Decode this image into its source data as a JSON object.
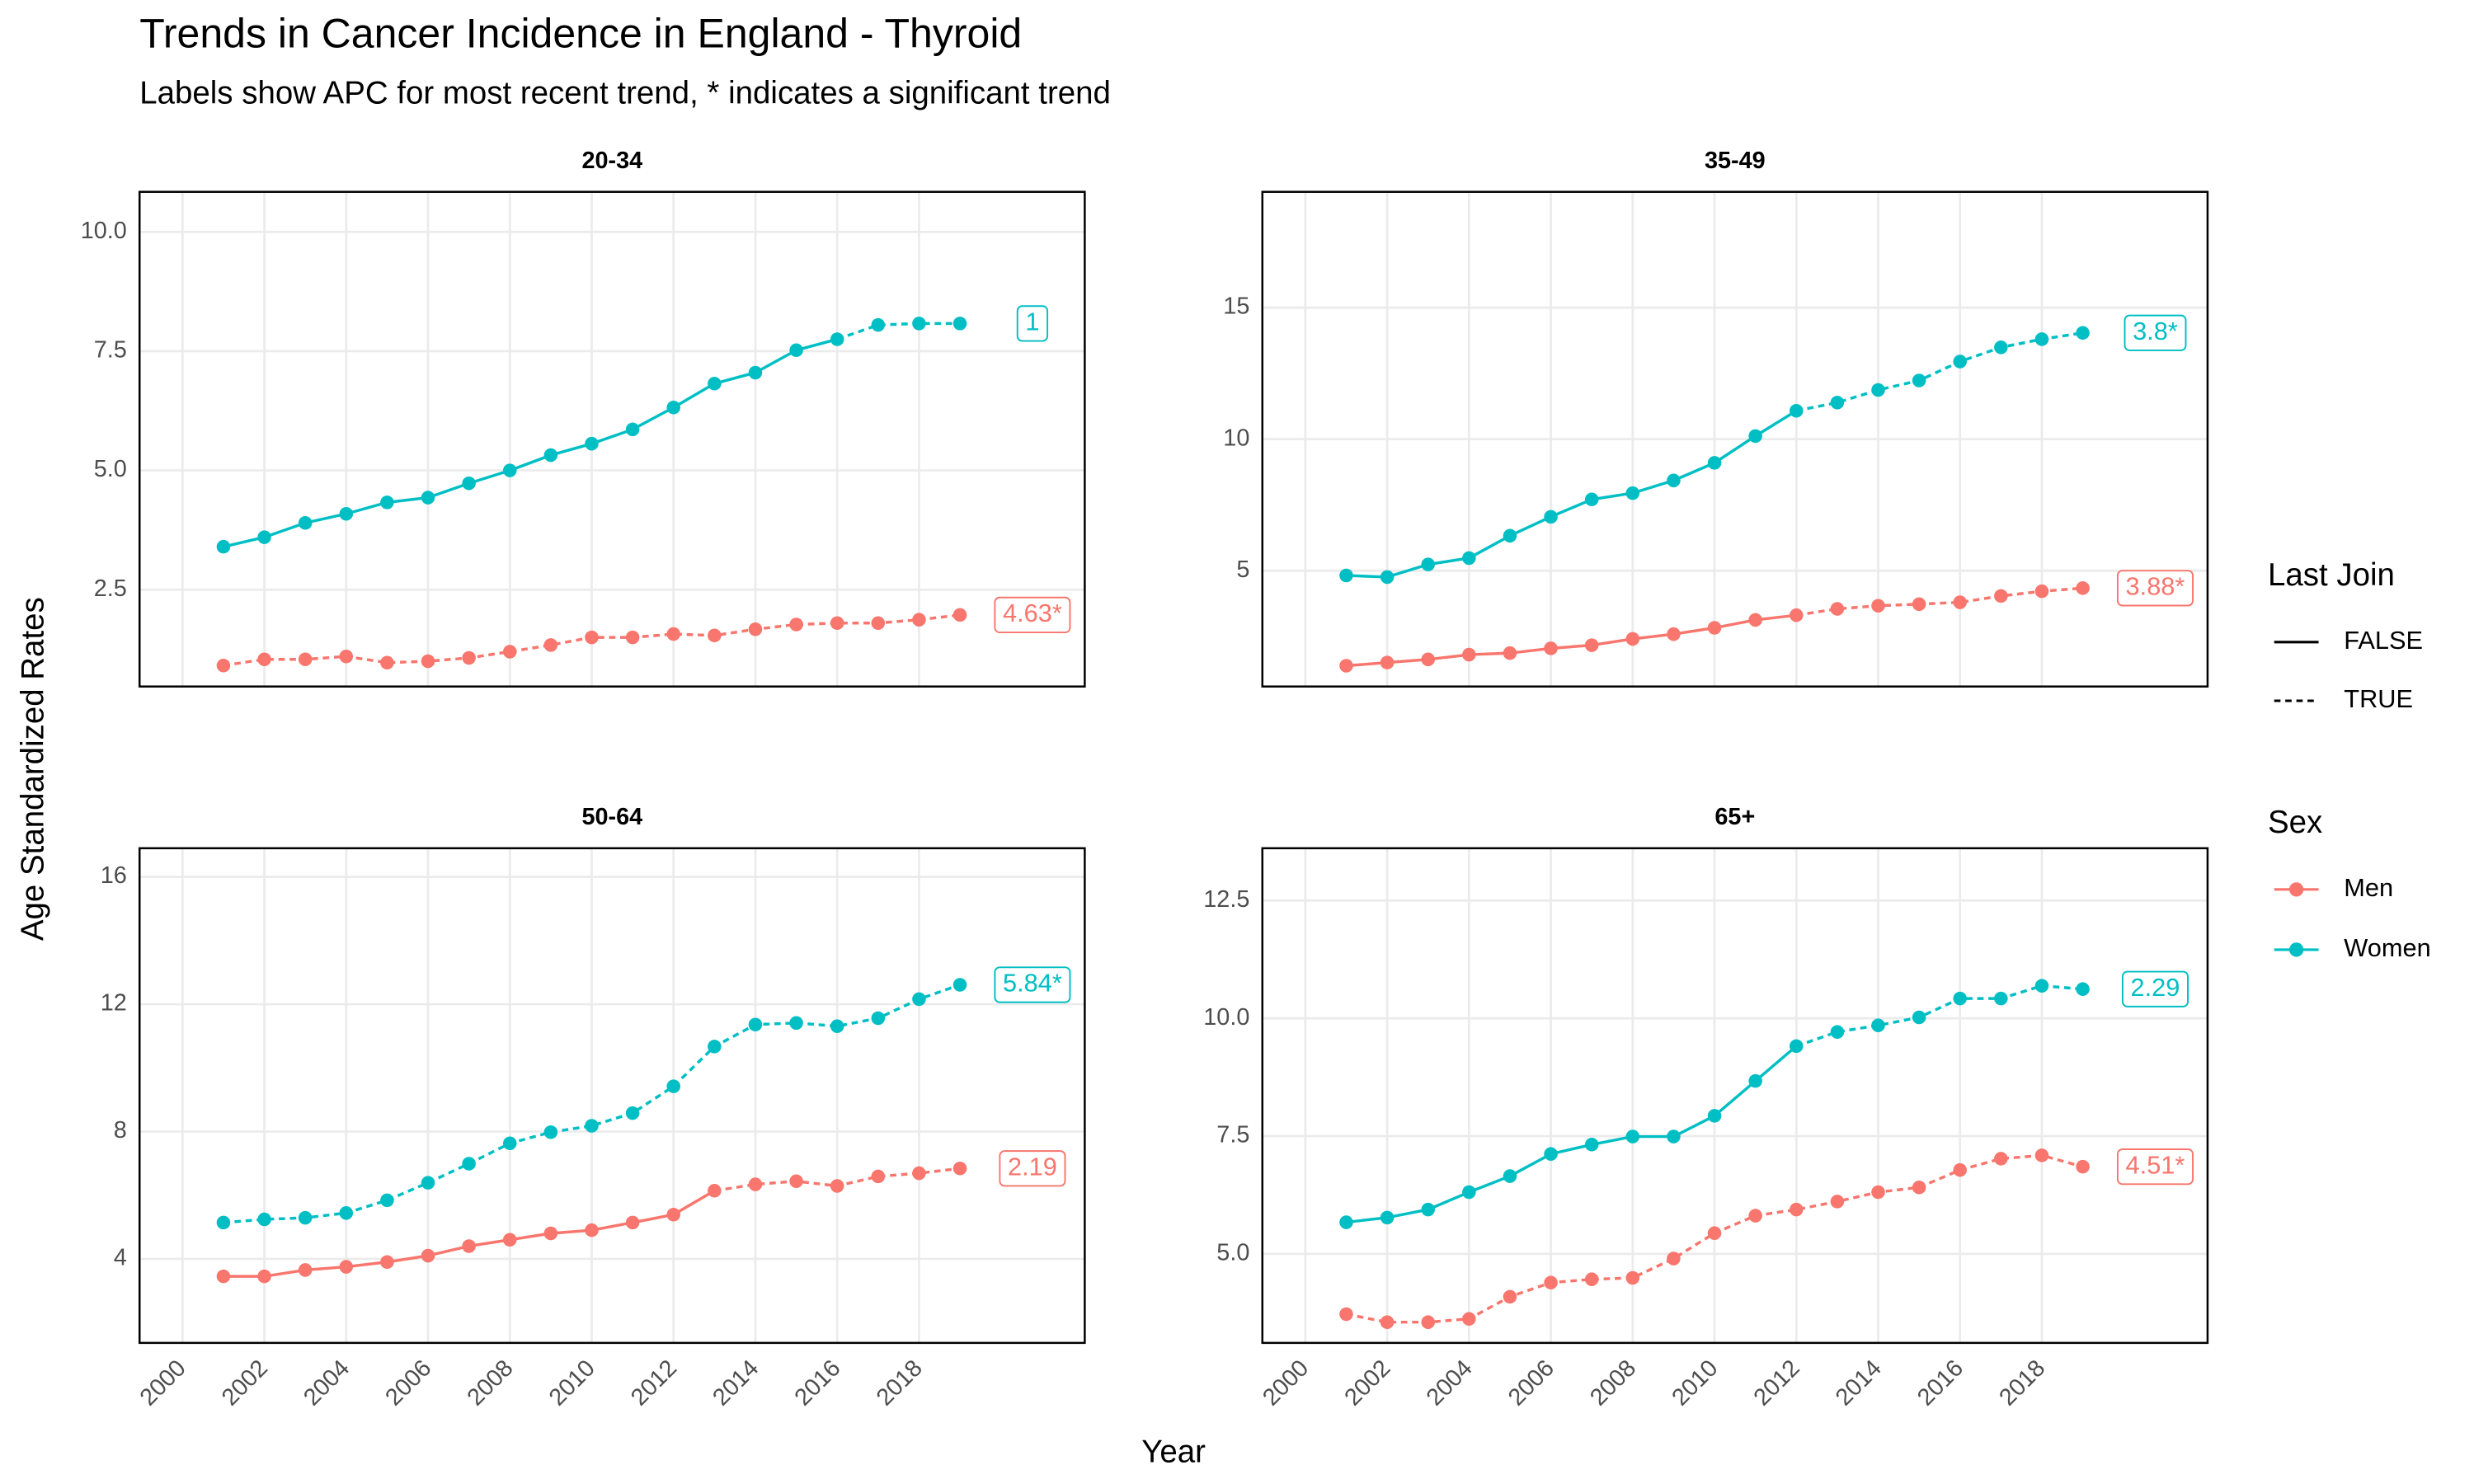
{
  "title": "Trends in Cancer Incidence in England - Thyroid",
  "subtitle": "Labels show APC for most recent trend, * indicates a significant trend",
  "x_label": "Year",
  "y_label": "Age Standardized Rates",
  "legend": {
    "linetype_title": "Last Join",
    "linetype_labels": [
      "FALSE",
      "TRUE"
    ],
    "color_title": "Sex"
  },
  "chart_data": [
    {
      "type": "line",
      "title": "20-34",
      "x": [
        2001,
        2002,
        2003,
        2004,
        2005,
        2006,
        2007,
        2008,
        2009,
        2010,
        2011,
        2012,
        2013,
        2014,
        2015,
        2016,
        2017,
        2018,
        2019
      ],
      "xlim": [
        1998.95,
        2022.05
      ],
      "xticks": [
        2000,
        2002,
        2004,
        2006,
        2008,
        2010,
        2012,
        2014,
        2016,
        2018
      ],
      "ylim": [
        0.47,
        10.84
      ],
      "yticks": [
        {
          "value": 2.5,
          "label": "2.5"
        },
        {
          "value": 5,
          "label": "5.0"
        },
        {
          "value": 7.5,
          "label": "7.5"
        },
        {
          "value": 10,
          "label": "10.0"
        }
      ],
      "grid": true,
      "series": [
        {
          "name": "Men",
          "color": "#F8766D",
          "label": "4.63*",
          "values": [
            0.91,
            1.04,
            1.04,
            1.1,
            0.97,
            1.0,
            1.07,
            1.2,
            1.34,
            1.5,
            1.5,
            1.57,
            1.54,
            1.67,
            1.77,
            1.8,
            1.8,
            1.87,
            1.97
          ],
          "last_join": [
            true,
            true,
            true,
            true,
            true,
            true,
            true,
            true,
            true,
            true,
            true,
            true,
            true,
            true,
            true,
            true,
            true,
            true,
            true
          ]
        },
        {
          "name": "Women",
          "color": "#00BFC4",
          "label": "1",
          "values": [
            3.4,
            3.6,
            3.9,
            4.09,
            4.33,
            4.43,
            4.73,
            5.0,
            5.32,
            5.56,
            5.86,
            6.32,
            6.82,
            7.05,
            7.52,
            7.75,
            8.05,
            8.08,
            8.08
          ],
          "last_join": [
            false,
            false,
            false,
            false,
            false,
            false,
            false,
            false,
            false,
            false,
            false,
            false,
            false,
            false,
            false,
            true,
            true,
            true,
            true
          ]
        }
      ]
    },
    {
      "type": "line",
      "title": "35-49",
      "x": [
        2001,
        2002,
        2003,
        2004,
        2005,
        2006,
        2007,
        2008,
        2009,
        2010,
        2011,
        2012,
        2013,
        2014,
        2015,
        2016,
        2017,
        2018,
        2019
      ],
      "xlim": [
        1998.95,
        2022.05
      ],
      "xticks": [
        2000,
        2002,
        2004,
        2006,
        2008,
        2010,
        2012,
        2014,
        2016,
        2018
      ],
      "ylim": [
        0.6,
        19.4
      ],
      "yticks": [
        5,
        10,
        15
      ],
      "grid": true,
      "series": [
        {
          "name": "Men",
          "color": "#F8766D",
          "label": "3.88*",
          "values": [
            1.39,
            1.51,
            1.63,
            1.81,
            1.87,
            2.05,
            2.17,
            2.41,
            2.59,
            2.83,
            3.13,
            3.31,
            3.55,
            3.67,
            3.73,
            3.8,
            4.04,
            4.22,
            4.34
          ],
          "last_join": [
            false,
            false,
            false,
            false,
            false,
            false,
            false,
            false,
            false,
            false,
            false,
            true,
            true,
            true,
            true,
            true,
            true,
            true,
            true
          ]
        },
        {
          "name": "Women",
          "color": "#00BFC4",
          "label": "3.8*",
          "values": [
            4.82,
            4.76,
            5.24,
            5.48,
            6.33,
            7.05,
            7.71,
            7.95,
            8.43,
            9.1,
            10.12,
            11.08,
            11.39,
            11.87,
            12.23,
            12.95,
            13.49,
            13.8,
            14.04
          ],
          "last_join": [
            false,
            false,
            false,
            false,
            false,
            false,
            false,
            false,
            false,
            false,
            false,
            true,
            true,
            true,
            true,
            true,
            true,
            true,
            true
          ]
        }
      ]
    },
    {
      "type": "line",
      "title": "50-64",
      "x": [
        2001,
        2002,
        2003,
        2004,
        2005,
        2006,
        2007,
        2008,
        2009,
        2010,
        2011,
        2012,
        2013,
        2014,
        2015,
        2016,
        2017,
        2018,
        2019
      ],
      "xlim": [
        1998.95,
        2022.05
      ],
      "xticks": [
        2000,
        2002,
        2004,
        2006,
        2008,
        2010,
        2012,
        2014,
        2016,
        2018
      ],
      "ylim": [
        1.36,
        16.9
      ],
      "yticks": [
        4,
        8,
        12,
        16
      ],
      "grid": true,
      "series": [
        {
          "name": "Men",
          "color": "#F8766D",
          "label": "2.19",
          "values": [
            3.45,
            3.45,
            3.65,
            3.75,
            3.9,
            4.1,
            4.4,
            4.6,
            4.8,
            4.9,
            5.14,
            5.39,
            6.14,
            6.34,
            6.44,
            6.29,
            6.59,
            6.69,
            6.84
          ],
          "last_join": [
            false,
            false,
            false,
            false,
            false,
            false,
            false,
            false,
            false,
            false,
            false,
            false,
            true,
            true,
            true,
            true,
            true,
            true,
            true
          ]
        },
        {
          "name": "Women",
          "color": "#00BFC4",
          "label": "5.84*",
          "values": [
            5.14,
            5.24,
            5.29,
            5.44,
            5.84,
            6.39,
            6.99,
            7.63,
            7.98,
            8.18,
            8.58,
            9.42,
            10.67,
            11.36,
            11.41,
            11.31,
            11.56,
            12.16,
            12.61
          ],
          "last_join": [
            true,
            true,
            true,
            true,
            true,
            true,
            true,
            true,
            true,
            true,
            true,
            true,
            true,
            true,
            true,
            true,
            true,
            true,
            true
          ]
        }
      ]
    },
    {
      "type": "line",
      "title": "65+",
      "x": [
        2001,
        2002,
        2003,
        2004,
        2005,
        2006,
        2007,
        2008,
        2009,
        2010,
        2011,
        2012,
        2013,
        2014,
        2015,
        2016,
        2017,
        2018,
        2019
      ],
      "xlim": [
        1998.95,
        2022.05
      ],
      "xticks": [
        2000,
        2002,
        2004,
        2006,
        2008,
        2010,
        2012,
        2014,
        2016,
        2018
      ],
      "ylim": [
        3.11,
        13.61
      ],
      "yticks": [
        {
          "value": 5,
          "label": "5.0"
        },
        {
          "value": 7.5,
          "label": "7.5"
        },
        {
          "value": 10,
          "label": "10.0"
        },
        {
          "value": 12.5,
          "label": "12.5"
        }
      ],
      "grid": true,
      "series": [
        {
          "name": "Men",
          "color": "#F8766D",
          "label": "4.51*",
          "values": [
            3.72,
            3.55,
            3.55,
            3.62,
            4.09,
            4.39,
            4.46,
            4.49,
            4.9,
            5.44,
            5.81,
            5.94,
            6.11,
            6.31,
            6.41,
            6.78,
            7.02,
            7.09,
            6.85
          ],
          "last_join": [
            true,
            true,
            true,
            true,
            true,
            true,
            true,
            true,
            true,
            true,
            true,
            true,
            true,
            true,
            true,
            true,
            true,
            true,
            true
          ]
        },
        {
          "name": "Women",
          "color": "#00BFC4",
          "label": "2.29",
          "values": [
            5.67,
            5.77,
            5.94,
            6.31,
            6.65,
            7.12,
            7.32,
            7.49,
            7.49,
            7.93,
            8.67,
            9.41,
            9.71,
            9.85,
            10.02,
            10.42,
            10.42,
            10.69,
            10.62
          ],
          "last_join": [
            false,
            false,
            false,
            false,
            false,
            false,
            false,
            false,
            false,
            false,
            false,
            true,
            true,
            true,
            true,
            true,
            true,
            true,
            true
          ]
        }
      ]
    }
  ]
}
